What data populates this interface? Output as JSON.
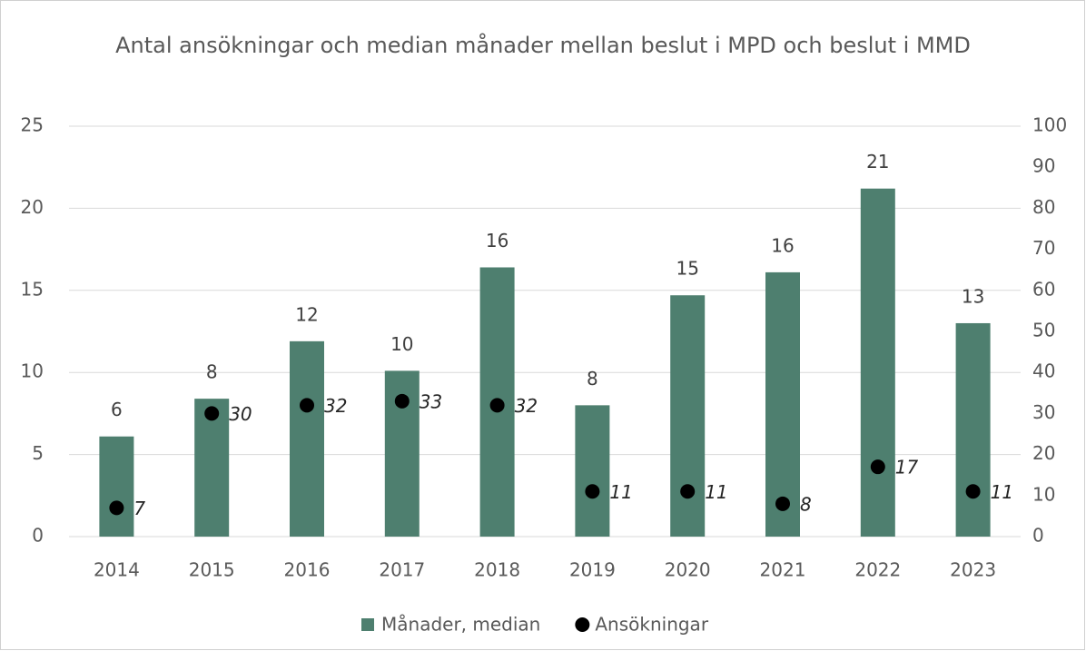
{
  "chart_data": {
    "type": "bar_dot",
    "title": "Antal ansökningar och median månader mellan beslut i MPD och beslut i MMD",
    "categories": [
      "2014",
      "2015",
      "2016",
      "2017",
      "2018",
      "2019",
      "2020",
      "2021",
      "2022",
      "2023"
    ],
    "series": [
      {
        "name": "Månader, median",
        "color": "#4e7f6f",
        "type": "bar",
        "values": [
          6.1,
          8.4,
          11.9,
          10.1,
          16.4,
          8.0,
          14.7,
          16.1,
          21.2,
          13.0
        ],
        "value_labels": [
          "6",
          "8",
          "12",
          "10",
          "16",
          "8",
          "15",
          "16",
          "21",
          "13"
        ]
      },
      {
        "name": "Ansökningar",
        "color": "#000000",
        "type": "dot",
        "axis": "y2",
        "values": [
          7,
          30,
          32,
          33,
          32,
          11,
          11,
          8,
          17,
          11
        ]
      }
    ],
    "ylim": [
      0,
      25
    ],
    "yticks": [
      0,
      5,
      10,
      15,
      20,
      25
    ],
    "y2lim": [
      0,
      100
    ],
    "y2ticks": [
      0,
      10,
      20,
      30,
      40,
      50,
      60,
      70,
      80,
      90,
      100
    ],
    "grid": true,
    "legend": "bottom"
  }
}
